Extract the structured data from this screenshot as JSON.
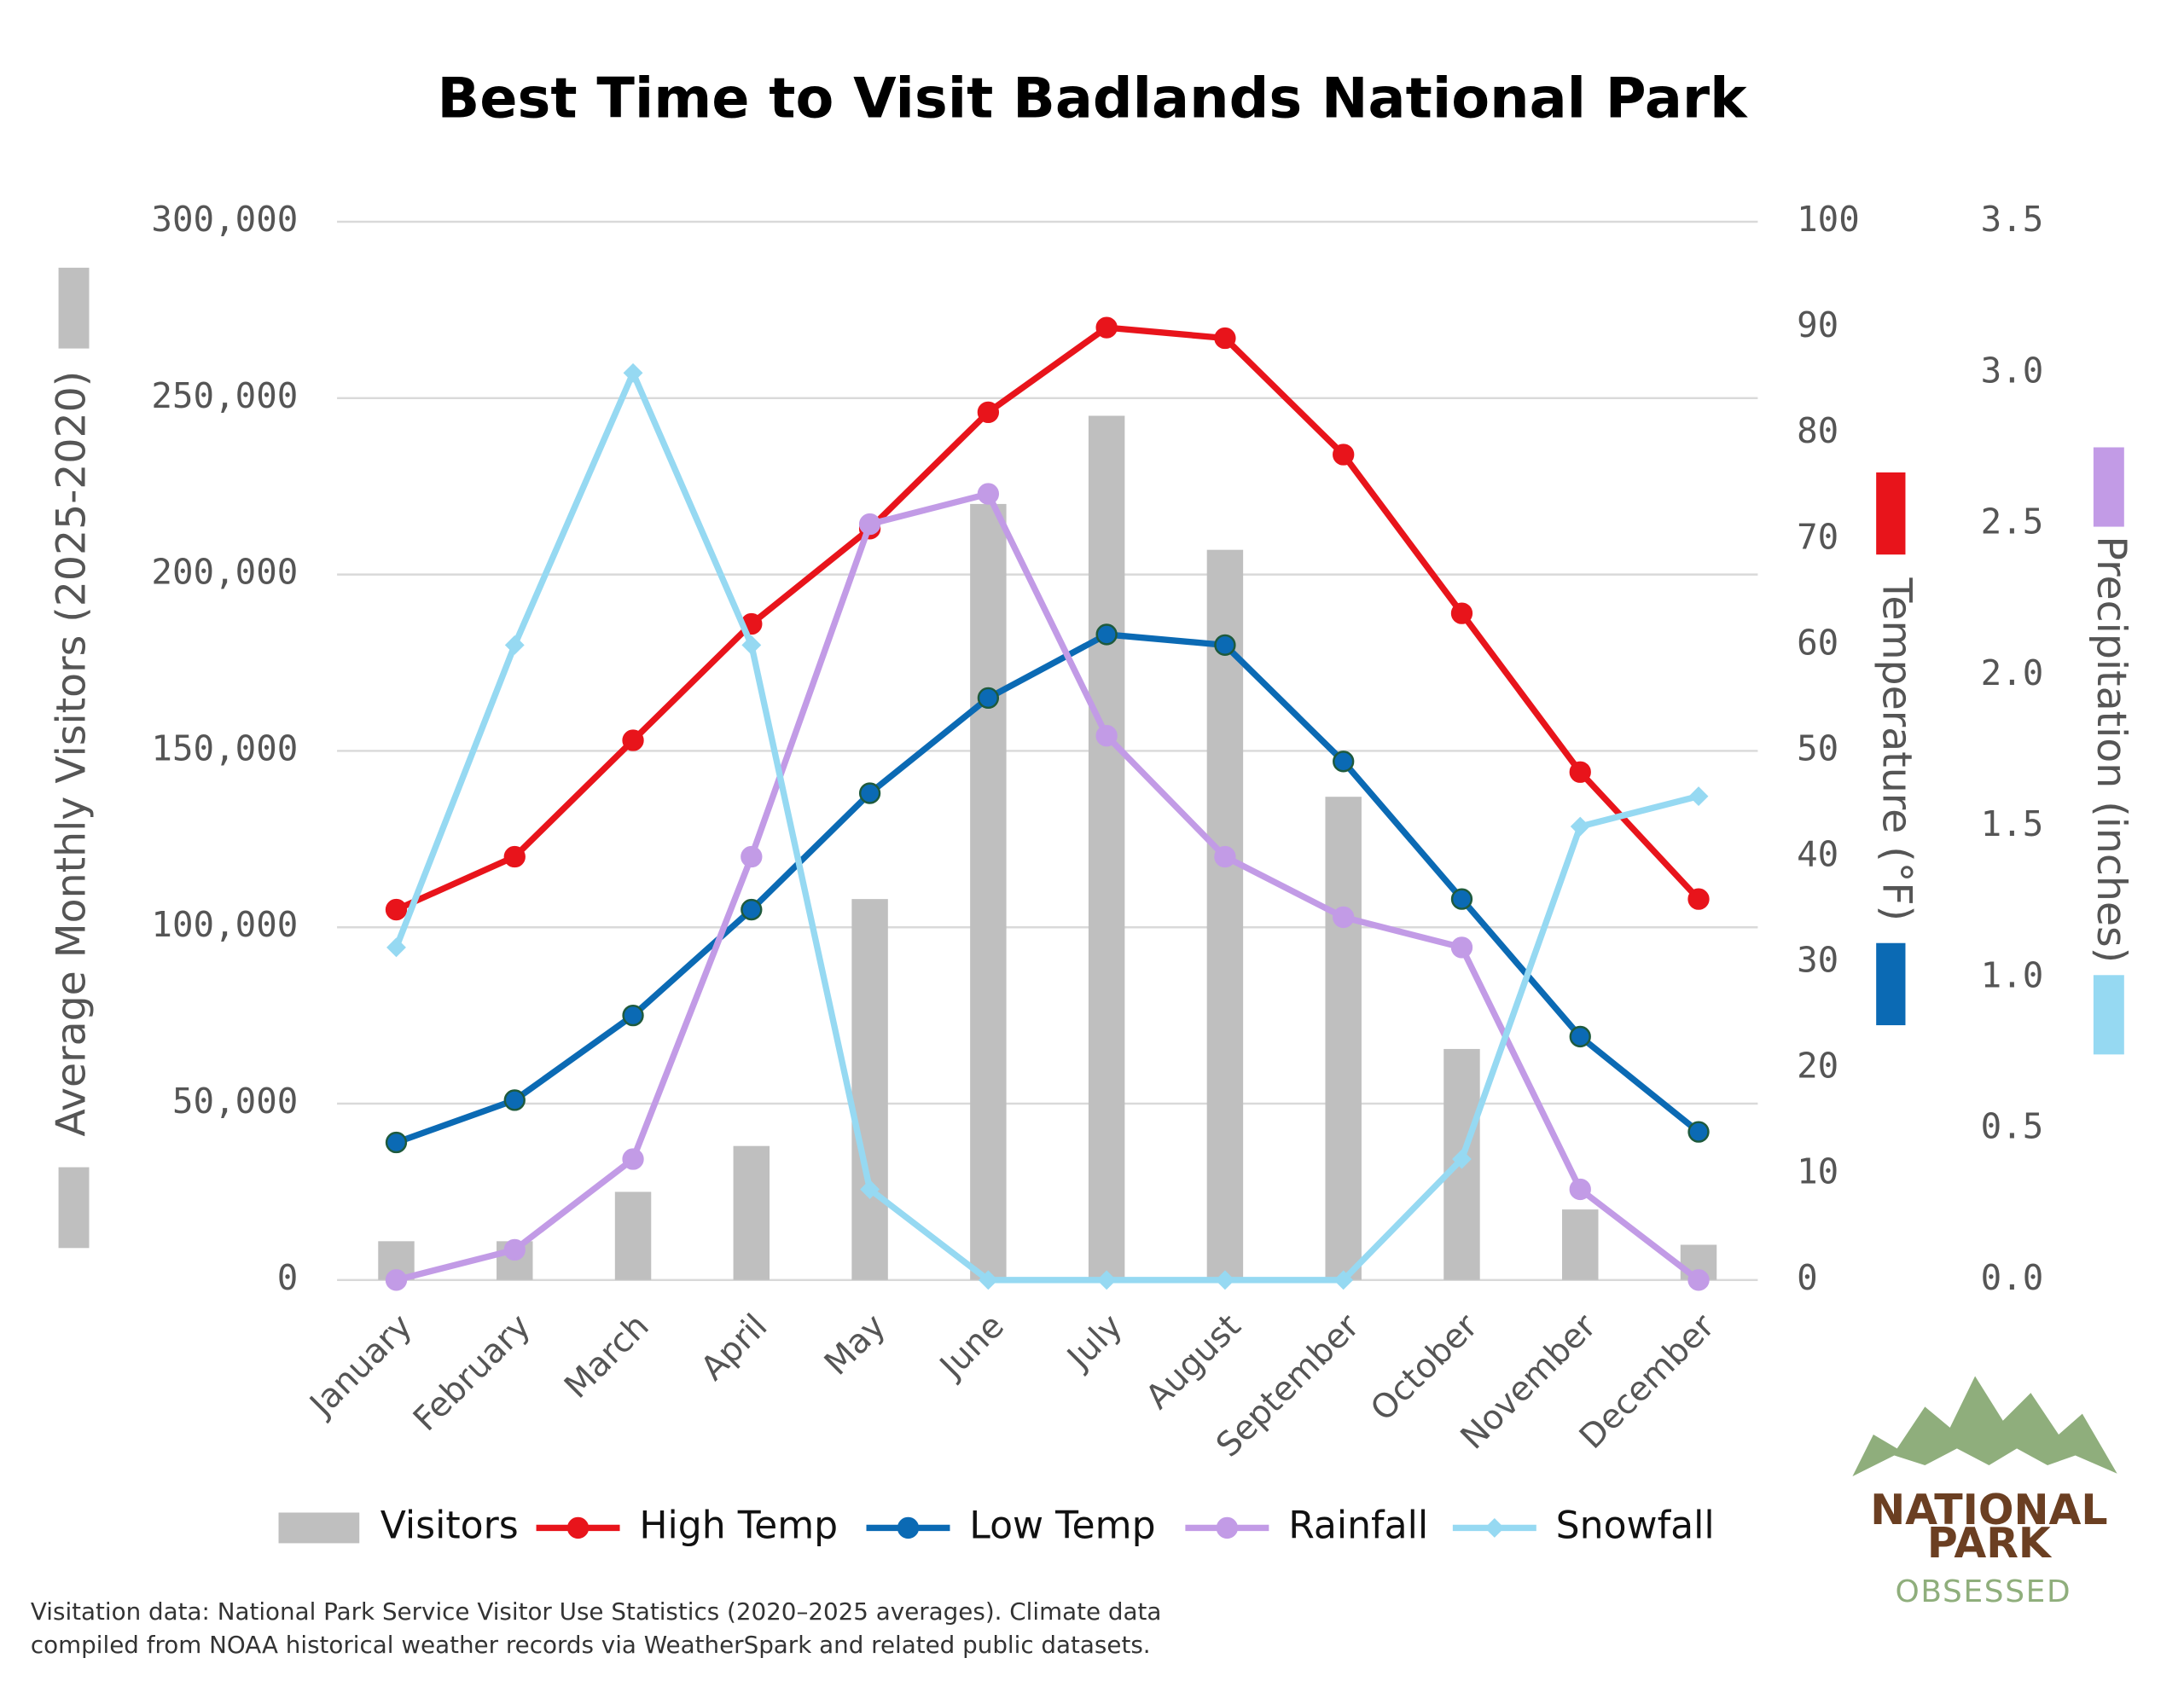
{
  "chart_data": {
    "type": "combo",
    "title": "Best Time to Visit Badlands National Park",
    "y_label": "Average Monthly Visitors (2025-2020)",
    "y2_label": "Temperature (°F)",
    "y3_label": "Precipitation (inches)",
    "categories": [
      "January",
      "February",
      "March",
      "April",
      "May",
      "June",
      "July",
      "August",
      "September",
      "October",
      "November",
      "December"
    ],
    "series": [
      {
        "name": "Visitors",
        "type": "bar",
        "axis": "y",
        "color": "#bfbfbf",
        "values": [
          11000,
          11000,
          25000,
          38000,
          108000,
          220000,
          245000,
          207000,
          137000,
          65500,
          20000,
          10000
        ]
      },
      {
        "name": "High Temp",
        "type": "line",
        "axis": "y2",
        "color": "#e8141b",
        "marker": "circle",
        "values": [
          35,
          40,
          51,
          62,
          71,
          82,
          90,
          89,
          78,
          63,
          48,
          36
        ]
      },
      {
        "name": "Low Temp",
        "type": "line",
        "axis": "y2",
        "color": "#0b6ab4",
        "marker": "circle",
        "values": [
          13,
          17,
          25,
          35,
          46,
          55,
          61,
          60,
          49,
          36,
          23,
          14
        ]
      },
      {
        "name": "Rainfall",
        "type": "line",
        "axis": "y3",
        "color": "#c29be6",
        "marker": "circle",
        "values": [
          0,
          0.1,
          0.4,
          1.4,
          2.5,
          2.6,
          1.8,
          1.4,
          1.2,
          1.1,
          0.3,
          0
        ]
      },
      {
        "name": "Snowfall",
        "type": "line",
        "axis": "y3",
        "color": "#96d9f2",
        "marker": "diamond",
        "values": [
          1.1,
          2.1,
          3.0,
          2.1,
          0.3,
          0,
          0,
          0,
          0,
          0.4,
          1.5,
          1.6
        ]
      }
    ],
    "ylim": [
      0,
      300000
    ],
    "yticks": [
      0,
      {
        "value": 50000,
        "label": "50,000"
      },
      {
        "value": 100000,
        "label": "100,000"
      },
      {
        "value": 150000,
        "label": "150,000"
      },
      {
        "value": 200000,
        "label": "200,000"
      },
      {
        "value": 250000,
        "label": "250,000"
      },
      {
        "value": 300000,
        "label": "300,000"
      }
    ],
    "y2lim": [
      0,
      100
    ],
    "y2ticks": [
      0,
      10,
      20,
      30,
      40,
      50,
      60,
      70,
      80,
      90,
      100
    ],
    "y3lim": [
      0,
      3.5
    ],
    "y3ticks": [
      {
        "value": 0,
        "label": "0.0"
      },
      0.5,
      {
        "value": 1,
        "label": "1.0"
      },
      1.5,
      {
        "value": 2,
        "label": "2.0"
      },
      2.5,
      {
        "value": 3,
        "label": "3.0"
      },
      3.5
    ],
    "grid": true,
    "legend": "bottom"
  },
  "footnote": [
    "Visitation data: National Park Service Visitor Use Statistics (2020–2025 averages). Climate data",
    "compiled from NOAA historical weather records via WeatherSpark and related public datasets."
  ],
  "logo": {
    "line1": "NATIONAL",
    "line2": "PARK",
    "line3": "OBSESSED"
  }
}
